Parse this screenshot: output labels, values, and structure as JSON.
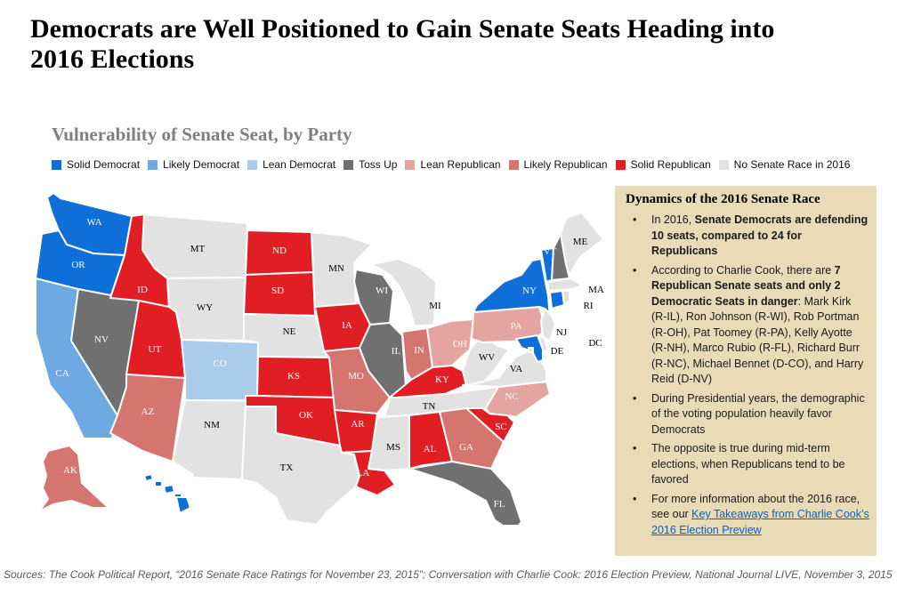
{
  "title": "Democrats are Well Positioned to Gain Senate Seats Heading into 2016 Elections",
  "subtitle": "Vulnerability of Senate Seat, by Party",
  "colors": {
    "solid_democrat": "#0f6fd8",
    "likely_democrat": "#6ea9e4",
    "lean_democrat": "#abcbea",
    "toss_up": "#707070",
    "lean_republican": "#e4a4a0",
    "likely_republican": "#d4756f",
    "solid_republican": "#e01e23",
    "no_race": "#e2e2e2"
  },
  "legend": [
    {
      "key": "solid_democrat",
      "label": "Solid Democrat"
    },
    {
      "key": "likely_democrat",
      "label": "Likely Democrat"
    },
    {
      "key": "lean_democrat",
      "label": "Lean Democrat"
    },
    {
      "key": "toss_up",
      "label": "Toss Up"
    },
    {
      "key": "lean_republican",
      "label": "Lean Republican"
    },
    {
      "key": "likely_republican",
      "label": "Likely Republican"
    },
    {
      "key": "solid_republican",
      "label": "Solid Republican"
    },
    {
      "key": "no_race",
      "label": "No Senate Race in 2016"
    }
  ],
  "states": {
    "WA": "solid_democrat",
    "OR": "solid_democrat",
    "CA": "likely_democrat",
    "NV": "toss_up",
    "ID": "solid_republican",
    "MT": "no_race",
    "WY": "no_race",
    "UT": "solid_republican",
    "AZ": "likely_republican",
    "CO": "lean_democrat",
    "NM": "no_race",
    "ND": "solid_republican",
    "SD": "solid_republican",
    "NE": "no_race",
    "KS": "solid_republican",
    "OK": "solid_republican",
    "TX": "no_race",
    "MN": "no_race",
    "IA": "solid_republican",
    "MO": "likely_republican",
    "AR": "solid_republican",
    "LA": "solid_republican",
    "WI": "toss_up",
    "IL": "toss_up",
    "MI": "no_race",
    "IN": "likely_republican",
    "OH": "lean_republican",
    "KY": "solid_republican",
    "TN": "no_race",
    "MS": "no_race",
    "AL": "solid_republican",
    "GA": "likely_republican",
    "FL": "toss_up",
    "SC": "solid_republican",
    "NC": "lean_republican",
    "VA": "no_race",
    "WV": "no_race",
    "PA": "lean_republican",
    "NY": "solid_democrat",
    "VT": "solid_democrat",
    "NH": "toss_up",
    "ME": "no_race",
    "MA": "no_race",
    "CT": "solid_democrat",
    "RI": "no_race",
    "NJ": "no_race",
    "DE": "no_race",
    "MD": "solid_democrat",
    "DC": "no_race",
    "AK": "likely_republican",
    "HI": "solid_democrat"
  },
  "dynamics": {
    "title": "Dynamics of the 2016 Senate Race",
    "b1_pre": "In 2016, ",
    "b1_bold": "Senate Democrats are defending 10 seats, compared to 24 for Republicans",
    "b2_pre": "According to Charlie Cook, there are ",
    "b2_bold": "7 Republican Senate seats and only 2 Democratic Seats in danger",
    "b2_post": ": Mark Kirk (R-IL), Ron Johnson (R-WI), Rob Portman (R-OH), Pat Toomey (R-PA), Kelly Ayotte (R-NH), Marco Rubio (R-FL), Richard Burr (R-NC), Michael Bennet (D-CO), and Harry Reid (D-NV)",
    "b3": "During Presidential years, the demographic of the voting population heavily favor Democrats",
    "b4": "The opposite is true during mid-term elections, when Republicans tend to be favored",
    "b5_pre": "For more information about the 2016 race, see our ",
    "b5_link": "Key Takeaways from Charlie Cook’s 2016 Election Preview"
  },
  "sources": "Sources: The Cook Political Report, “2016 Senate Race Ratings for November 23, 2015”; Conversation with Charlie Cook: 2016 Election Preview, National Journal LIVE, November 3, 2015"
}
